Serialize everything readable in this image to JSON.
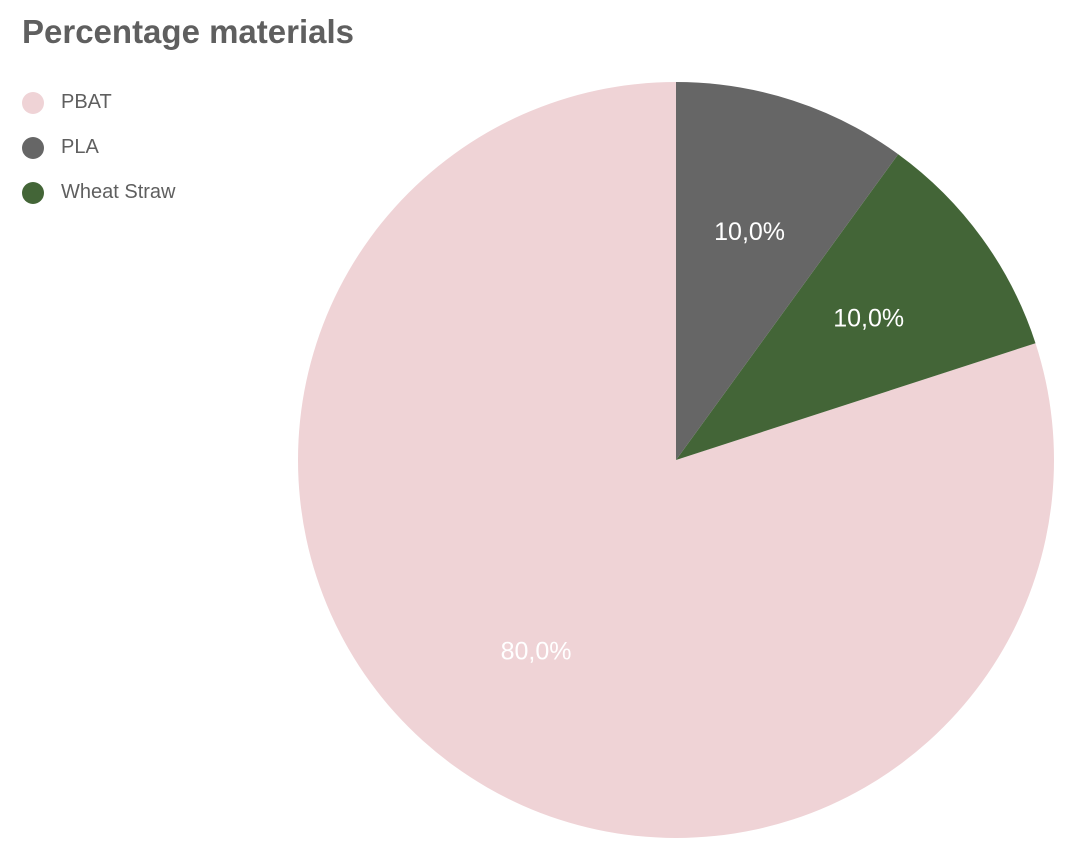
{
  "chart_data": {
    "type": "pie",
    "title": "Percentage materials",
    "legend_position": "top-left",
    "start_angle_deg": 0,
    "direction": "counterclockwise",
    "slices": [
      {
        "name": "PBAT",
        "value": 80.0,
        "label": "80,0%",
        "color": "#efd3d6"
      },
      {
        "name": "Wheat Straw",
        "value": 10.0,
        "label": "10,0%",
        "color": "#436537"
      },
      {
        "name": "PLA",
        "value": 10.0,
        "label": "10,0%",
        "color": "#666666"
      }
    ],
    "legend": [
      {
        "name": "PBAT",
        "color": "#efd3d6"
      },
      {
        "name": "PLA",
        "color": "#666666"
      },
      {
        "name": "Wheat Straw",
        "color": "#436537"
      }
    ]
  }
}
